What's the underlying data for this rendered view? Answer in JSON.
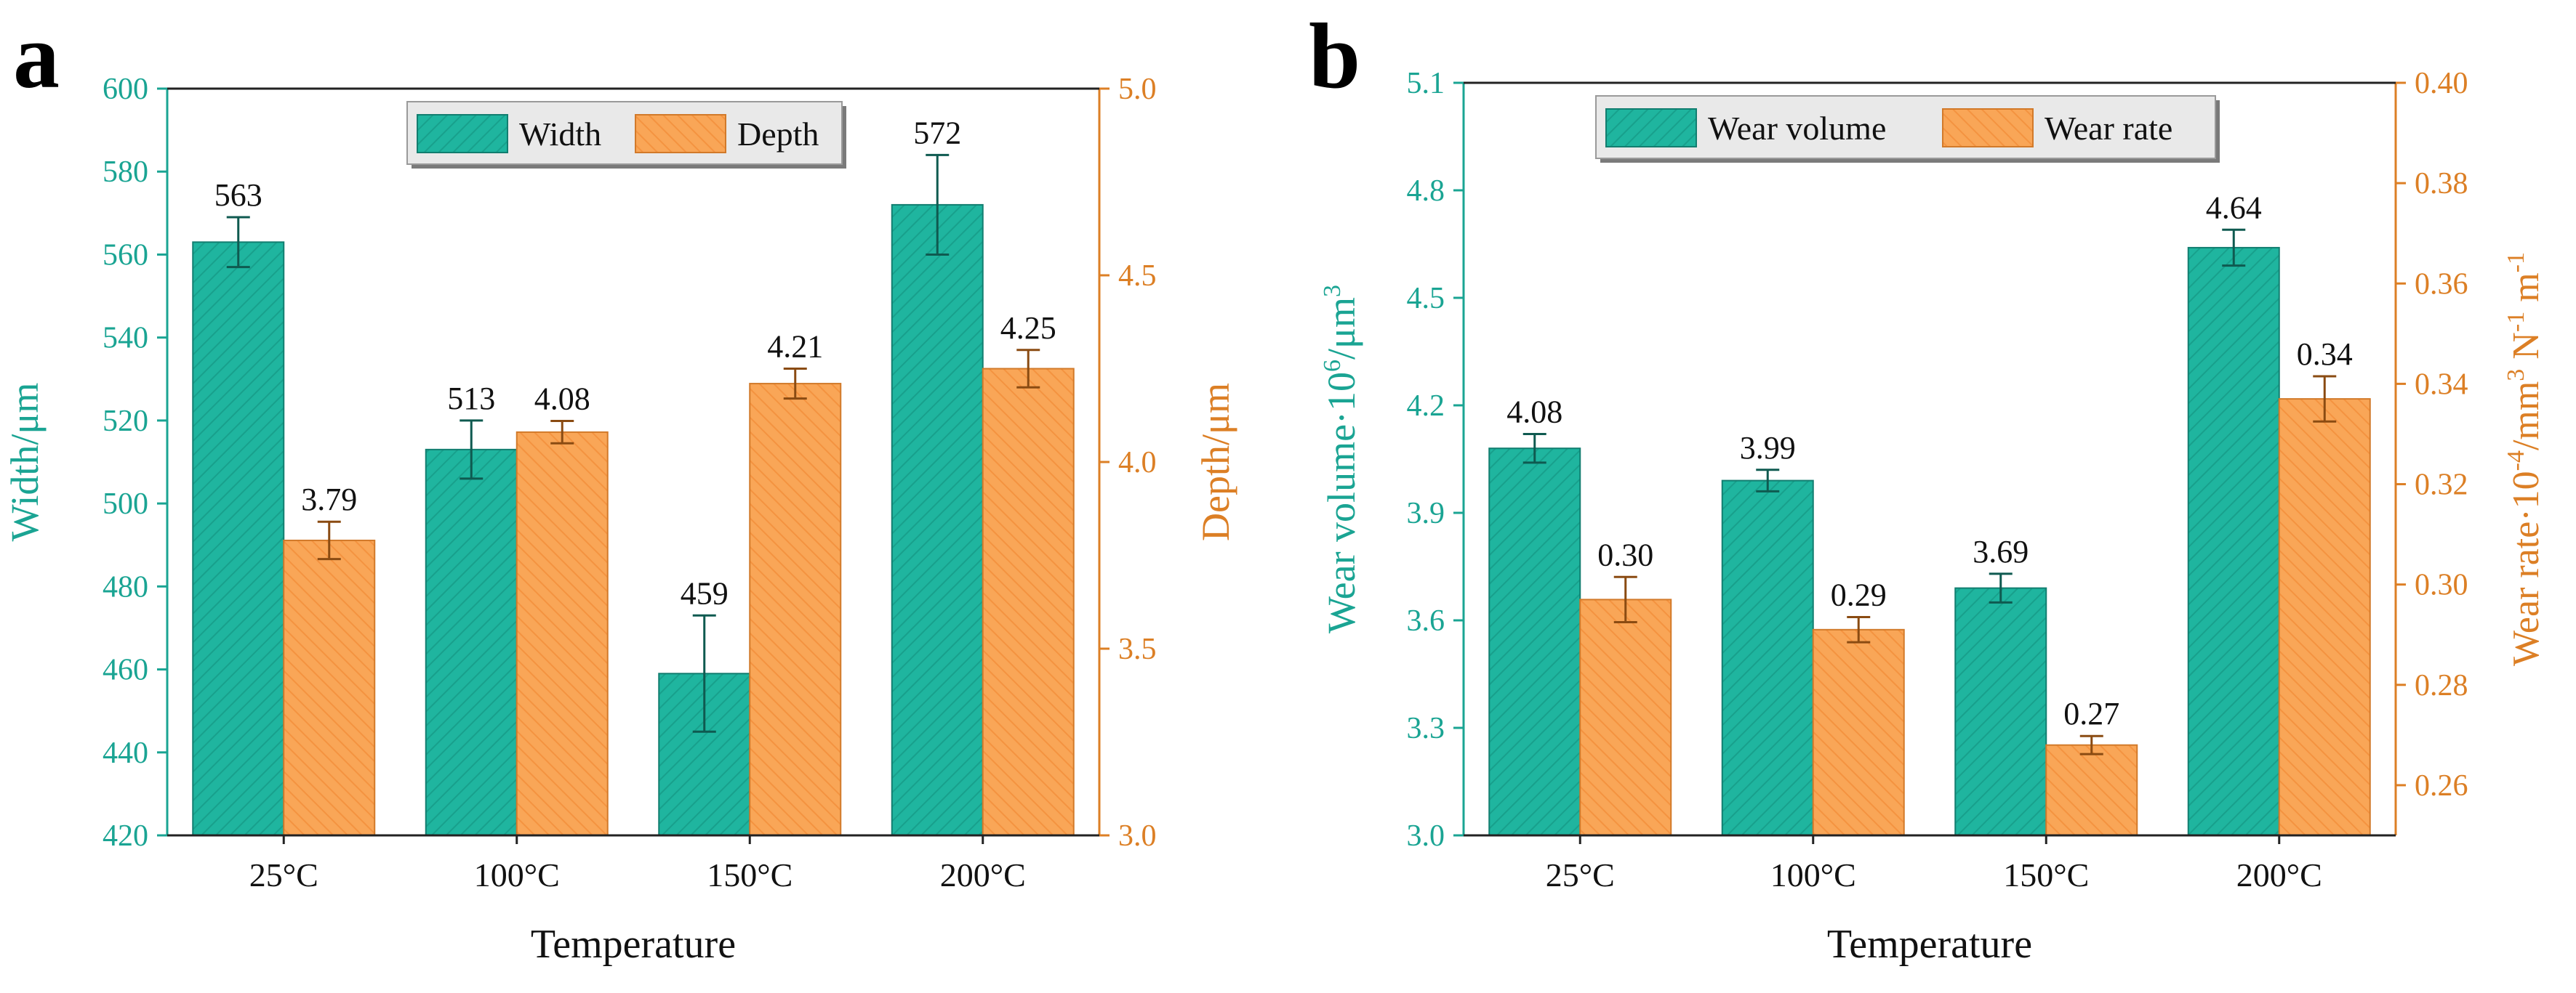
{
  "chart_data": [
    {
      "panel": "a",
      "type": "bar",
      "categories": [
        "25°C",
        "100°C",
        "150°C",
        "200°C"
      ],
      "xlabel": "Temperature",
      "series": [
        {
          "name": "Width",
          "axis": "left",
          "values": [
            563,
            513,
            459,
            572
          ],
          "errors": [
            6,
            7,
            14,
            12
          ],
          "labels": [
            "563",
            "513",
            "459",
            "572"
          ]
        },
        {
          "name": "Depth",
          "axis": "right",
          "values": [
            3.79,
            4.08,
            4.21,
            4.25
          ],
          "errors": [
            0.05,
            0.03,
            0.04,
            0.05
          ],
          "labels": [
            "3.79",
            "4.08",
            "4.21",
            "4.25"
          ]
        }
      ],
      "ylabel_left": "Width/μm",
      "ylim_left": [
        420,
        600
      ],
      "yticks_left": [
        "420",
        "440",
        "460",
        "480",
        "500",
        "520",
        "540",
        "560",
        "580",
        "600"
      ],
      "ylabel_right": "Depth/μm",
      "ylim_right": [
        3.0,
        5.0
      ],
      "yticks_right": [
        "3.0",
        "3.5",
        "4.0",
        "4.5",
        "5.0"
      ],
      "legend": "top-center"
    },
    {
      "panel": "b",
      "type": "bar",
      "categories": [
        "25°C",
        "100°C",
        "150°C",
        "200°C"
      ],
      "xlabel": "Temperature",
      "series": [
        {
          "name": "Wear volume",
          "axis": "left",
          "values": [
            4.08,
            3.99,
            3.69,
            4.64
          ],
          "errors": [
            0.04,
            0.03,
            0.04,
            0.05
          ],
          "labels": [
            "4.08",
            "3.99",
            "3.69",
            "4.64"
          ]
        },
        {
          "name": "Wear rate",
          "axis": "right",
          "values": [
            0.297,
            0.291,
            0.268,
            0.337
          ],
          "errors": [
            0.0045,
            0.0025,
            0.0018,
            0.0045
          ],
          "labels": [
            "0.30",
            "0.29",
            "0.27",
            "0.34"
          ]
        }
      ],
      "ylabel_left_main": "Wear volume·10",
      "ylabel_left_sup": "6",
      "ylabel_left_end": "/μm",
      "ylabel_left_sup2": "3",
      "ylim_left": [
        3.0,
        5.1
      ],
      "yticks_left": [
        "3.0",
        "3.3",
        "3.6",
        "3.9",
        "4.2",
        "4.5",
        "4.8",
        "5.1"
      ],
      "ylabel_right_main": "Wear rate·10",
      "ylabel_right_sup1": "-4",
      "ylabel_right_mid": "/mm",
      "ylabel_right_sup2": "3",
      "ylabel_right_n": " N",
      "ylabel_right_sup3": "-1",
      "ylabel_right_m": " m",
      "ylabel_right_sup4": "-1",
      "ylim_right": [
        0.25,
        0.4
      ],
      "yticks_right": [
        "0.26",
        "0.28",
        "0.30",
        "0.32",
        "0.34",
        "0.36",
        "0.38",
        "0.40"
      ],
      "legend": "top-center"
    }
  ],
  "panel_labels": {
    "a": "a",
    "b": "b"
  },
  "colors": {
    "teal": "#1fb59f",
    "orange": "#f7a453",
    "teal_axis": "#1aa493",
    "orange_axis": "#dc7f25"
  }
}
